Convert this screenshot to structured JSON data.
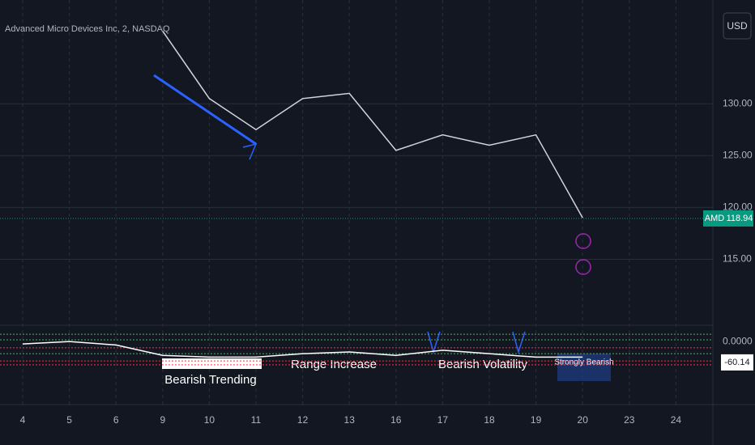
{
  "chart_data": [
    {
      "type": "line",
      "title": "Advanced Micro Devices Inc, 2, NASDAQ",
      "currency": "USD",
      "symbol": "AMD",
      "categories": [
        "4",
        "5",
        "6",
        "9",
        "10",
        "11",
        "12",
        "13",
        "16",
        "17",
        "18",
        "19",
        "20",
        "23",
        "24"
      ],
      "values": [
        null,
        null,
        null,
        137,
        130.5,
        127.5,
        130.5,
        131,
        125.5,
        127,
        126,
        127,
        119,
        null,
        null
      ],
      "color": "#d1d4dc",
      "last_value": 118.94,
      "last_color": "#089981",
      "ylim": [
        108.8,
        140
      ],
      "yticks": [
        {
          "value": 115,
          "label": "115.00"
        },
        {
          "value": 120,
          "label": "120.00"
        },
        {
          "value": 125,
          "label": "125.00"
        },
        {
          "value": 130,
          "label": "130.00"
        }
      ],
      "grid": true
    },
    {
      "type": "line",
      "color": "#ffffff",
      "values": [
        -7,
        0,
        -10,
        -40,
        -45,
        -45,
        -35,
        -30,
        -40,
        -25,
        -35,
        -45,
        -45,
        null,
        null
      ],
      "last_value": -60.14,
      "ylim": [
        -100,
        40
      ],
      "yticks": [
        {
          "value": 0,
          "label": "0.0000"
        }
      ],
      "levels": [
        {
          "value": 21,
          "color": "#4caf50"
        },
        {
          "value": 5,
          "color": "#4caf50"
        },
        {
          "value": -18,
          "color": "#f23645"
        },
        {
          "value": -35,
          "color": "#4caf50"
        },
        {
          "value": -56,
          "color": "#f23645"
        },
        {
          "value": -67,
          "color": "#f23645"
        }
      ],
      "annotations": [
        "Bearish Trending",
        "Range Increase",
        "Bearish Volatility",
        "Strongly Bearish"
      ]
    }
  ]
}
